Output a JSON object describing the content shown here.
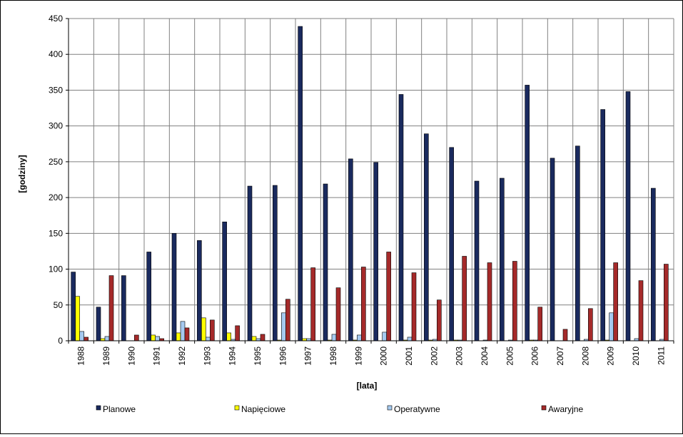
{
  "chart_data": {
    "type": "bar",
    "title": "",
    "xlabel": "[lata]",
    "ylabel": "[godziny]",
    "ylim": [
      0,
      450
    ],
    "yticks": [
      0,
      50,
      100,
      150,
      200,
      250,
      300,
      350,
      400,
      450
    ],
    "grid": true,
    "legend_position": "bottom",
    "categories": [
      "1988",
      "1989",
      "1990",
      "1991",
      "1992",
      "1993",
      "1994",
      "1995",
      "1996",
      "1997",
      "1998",
      "1999",
      "2000",
      "2001",
      "2002",
      "2003",
      "2004",
      "2005",
      "2006",
      "2007",
      "2008",
      "2009",
      "2010",
      "2011"
    ],
    "series": [
      {
        "name": "Planowe",
        "color": "#1a2a5e",
        "values": [
          96,
          47,
          91,
          124,
          150,
          140,
          166,
          216,
          217,
          439,
          219,
          254,
          249,
          344,
          289,
          270,
          223,
          227,
          357,
          255,
          272,
          323,
          348,
          213
        ]
      },
      {
        "name": "Napięciowe",
        "color": "#ffff00",
        "values": [
          62,
          3,
          0,
          8,
          11,
          32,
          11,
          6,
          1,
          3,
          1,
          1,
          0,
          1,
          1,
          1,
          0,
          0,
          1,
          0,
          0,
          1,
          0,
          0
        ]
      },
      {
        "name": "Operatywne",
        "color": "#a6caf0",
        "values": [
          13,
          6,
          0,
          6,
          27,
          5,
          2,
          3,
          39,
          3,
          9,
          8,
          12,
          5,
          2,
          1,
          1,
          1,
          1,
          0,
          2,
          39,
          3,
          2
        ]
      },
      {
        "name": "Awaryjne",
        "color": "#a52a2a",
        "values": [
          5,
          91,
          8,
          3,
          18,
          29,
          21,
          9,
          58,
          102,
          74,
          103,
          124,
          95,
          57,
          118,
          109,
          111,
          47,
          16,
          45,
          109,
          84,
          107
        ]
      }
    ]
  }
}
